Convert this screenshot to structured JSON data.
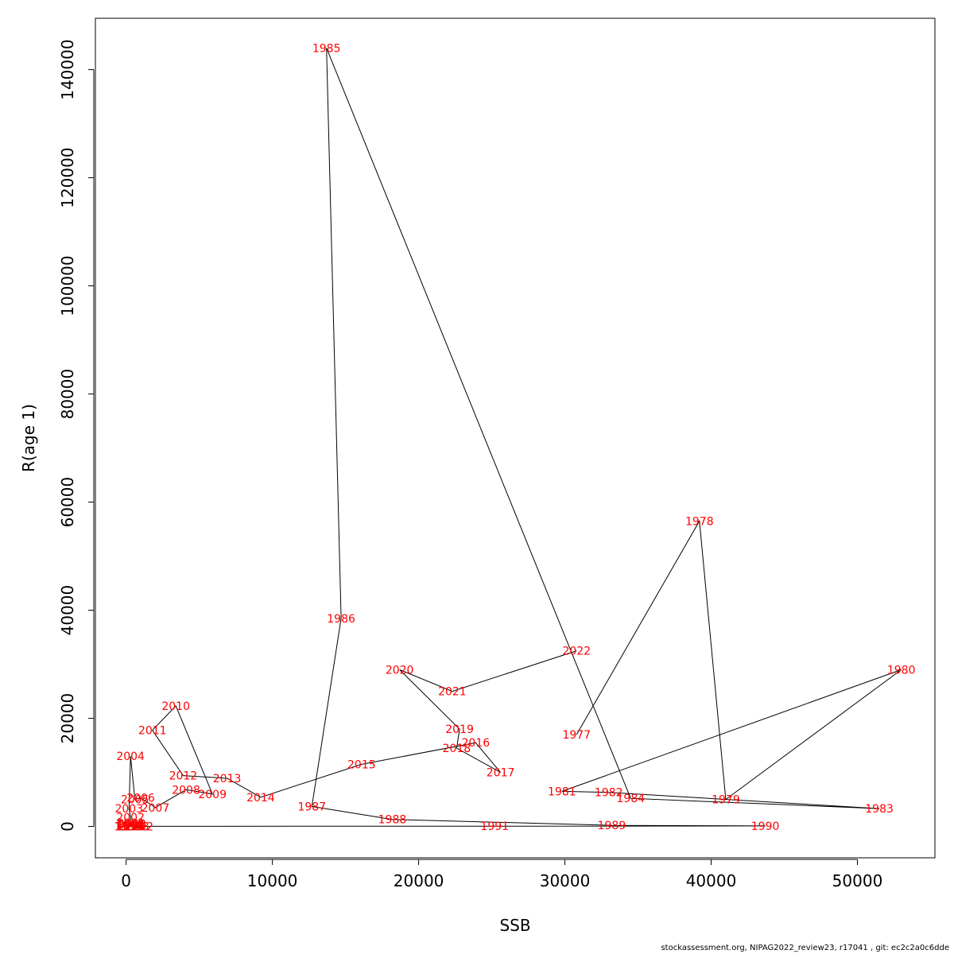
{
  "footer": "stockassessment.org, NIPAG2022_review23, r17041 , git: ec2c2a0c6dde",
  "colors": {
    "labels": "#ff0000",
    "path": "#000000",
    "axes": "#000000"
  },
  "chart_data": {
    "type": "line",
    "xlabel": "SSB",
    "ylabel": "R(age 1)",
    "xlim": [
      -2100,
      55300
    ],
    "ylim": [
      -5800,
      149500
    ],
    "xticks": [
      0,
      10000,
      20000,
      30000,
      40000,
      50000
    ],
    "yticks": [
      0,
      20000,
      40000,
      60000,
      80000,
      100000,
      120000,
      140000
    ],
    "grid": false,
    "points": [
      {
        "label": "1977",
        "x": 30800,
        "y": 17000
      },
      {
        "label": "1978",
        "x": 39200,
        "y": 56500
      },
      {
        "label": "1979",
        "x": 41000,
        "y": 5000
      },
      {
        "label": "1980",
        "x": 53000,
        "y": 29000
      },
      {
        "label": "1981",
        "x": 29800,
        "y": 6500
      },
      {
        "label": "1982",
        "x": 33000,
        "y": 6300
      },
      {
        "label": "1983",
        "x": 51500,
        "y": 3300
      },
      {
        "label": "1984",
        "x": 34500,
        "y": 5200
      },
      {
        "label": "1985",
        "x": 13700,
        "y": 144000
      },
      {
        "label": "1986",
        "x": 14700,
        "y": 38500
      },
      {
        "label": "1987",
        "x": 12700,
        "y": 3700
      },
      {
        "label": "1988",
        "x": 18200,
        "y": 1300
      },
      {
        "label": "1989",
        "x": 33200,
        "y": 200
      },
      {
        "label": "1990",
        "x": 43700,
        "y": 100
      },
      {
        "label": "1991",
        "x": 25200,
        "y": 50
      },
      {
        "label": "1992",
        "x": 900,
        "y": 20
      },
      {
        "label": "1993",
        "x": 600,
        "y": 20
      },
      {
        "label": "1994",
        "x": 300,
        "y": 20
      },
      {
        "label": "1995",
        "x": 150,
        "y": 20
      },
      {
        "label": "1996",
        "x": 150,
        "y": 20
      },
      {
        "label": "1997",
        "x": 200,
        "y": 30
      },
      {
        "label": "1998",
        "x": 300,
        "y": 50
      },
      {
        "label": "1999",
        "x": 300,
        "y": 300
      },
      {
        "label": "2000",
        "x": 400,
        "y": 500
      },
      {
        "label": "2001",
        "x": 300,
        "y": 700
      },
      {
        "label": "2002",
        "x": 300,
        "y": 1700
      },
      {
        "label": "2003",
        "x": 200,
        "y": 3300
      },
      {
        "label": "2004",
        "x": 300,
        "y": 13000
      },
      {
        "label": "2005",
        "x": 600,
        "y": 5000
      },
      {
        "label": "2006",
        "x": 1000,
        "y": 5300
      },
      {
        "label": "2007",
        "x": 2000,
        "y": 3500
      },
      {
        "label": "2008",
        "x": 4100,
        "y": 6800
      },
      {
        "label": "2009",
        "x": 5900,
        "y": 6000
      },
      {
        "label": "2010",
        "x": 3400,
        "y": 22300
      },
      {
        "label": "2011",
        "x": 1800,
        "y": 17800
      },
      {
        "label": "2012",
        "x": 3900,
        "y": 9400
      },
      {
        "label": "2013",
        "x": 6900,
        "y": 8900
      },
      {
        "label": "2014",
        "x": 9200,
        "y": 5400
      },
      {
        "label": "2015",
        "x": 16100,
        "y": 11500
      },
      {
        "label": "2016",
        "x": 23900,
        "y": 15500
      },
      {
        "label": "2017",
        "x": 25600,
        "y": 10000
      },
      {
        "label": "2018",
        "x": 22600,
        "y": 14500
      },
      {
        "label": "2019",
        "x": 22800,
        "y": 18000
      },
      {
        "label": "2020",
        "x": 18700,
        "y": 29000
      },
      {
        "label": "2021",
        "x": 22300,
        "y": 25000
      },
      {
        "label": "2022",
        "x": 30800,
        "y": 32500
      }
    ]
  }
}
